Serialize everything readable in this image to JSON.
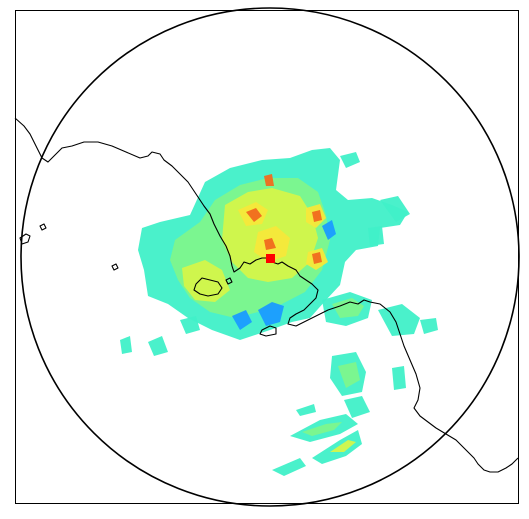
{
  "map": {
    "frame_color": "#000000",
    "range_ring_color": "#000000",
    "coastline_color": "#000000",
    "radar_site_marker_color": "#ff0000",
    "background_color": "#ffffff",
    "echo_colors": {
      "blue": "#1a9bff",
      "cyan": "#33e6e6",
      "aqua": "#40f0c8",
      "light_green": "#7df58c",
      "green": "#a6f56a",
      "yellow_green": "#d4f54a",
      "yellow": "#f5e83a",
      "orange": "#f5a623",
      "red_orange": "#f06a1e"
    }
  }
}
